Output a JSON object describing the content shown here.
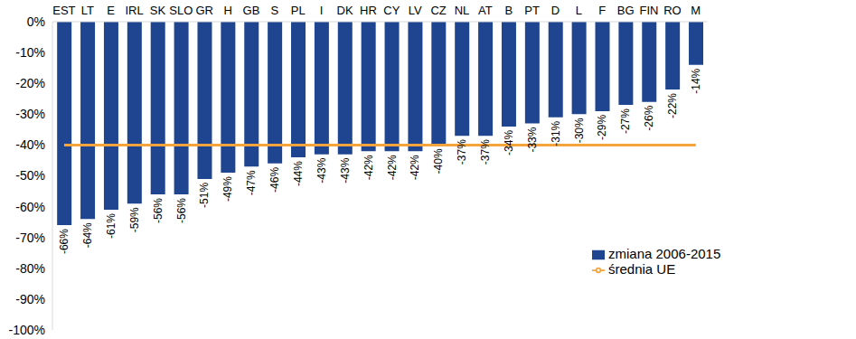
{
  "chart_data": {
    "type": "bar",
    "categories": [
      "EST",
      "LT",
      "E",
      "IRL",
      "SK",
      "SLO",
      "GR",
      "H",
      "GB",
      "S",
      "PL",
      "I",
      "DK",
      "HR",
      "CY",
      "LV",
      "CZ",
      "NL",
      "AT",
      "B",
      "PT",
      "D",
      "L",
      "F",
      "BG",
      "FIN",
      "RO",
      "M"
    ],
    "series": [
      {
        "name": "zmiana 2006-2015",
        "type": "bar",
        "color": "#1F4591",
        "data_labels": true,
        "values": [
          -66,
          -64,
          -61,
          -59,
          -56,
          -56,
          -51,
          -49,
          -47,
          -46,
          -44,
          -43,
          -43,
          -42,
          -42,
          -42,
          -40,
          -37,
          -37,
          -34,
          -33,
          -31,
          -30,
          -29,
          -27,
          -26,
          -22,
          -14
        ],
        "value_labels": [
          "-66%",
          "-64%",
          "-61%",
          "-59%",
          "-56%",
          "-56%",
          "-51%",
          "-49%",
          "-47%",
          "-46%",
          "-44%",
          "-43%",
          "-43%",
          "-42%",
          "-42%",
          "-42%",
          "-40%",
          "-37%",
          "-37%",
          "-34%",
          "-33%",
          "-31%",
          "-30%",
          "-29%",
          "-27%",
          "-26%",
          "-22%",
          "-14%"
        ]
      },
      {
        "name": "średnia UE",
        "type": "line",
        "color": "#F5A43C",
        "values": [
          -40,
          -40,
          -40,
          -40,
          -40,
          -40,
          -40,
          -40,
          -40,
          -40,
          -40,
          -40,
          -40,
          -40,
          -40,
          -40,
          -40,
          -40,
          -40,
          -40,
          -40,
          -40,
          -40,
          -40,
          -40,
          -40,
          -40,
          -40
        ]
      }
    ],
    "ylim": [
      -100,
      0
    ],
    "yticks": [
      {
        "value": 0,
        "label": "0%"
      },
      {
        "value": -10,
        "label": "-10%"
      },
      {
        "value": -20,
        "label": "-20%"
      },
      {
        "value": -30,
        "label": "-30%"
      },
      {
        "value": -40,
        "label": "-40%"
      },
      {
        "value": -50,
        "label": "-50%"
      },
      {
        "value": -60,
        "label": "-60%"
      },
      {
        "value": -70,
        "label": "-70%"
      },
      {
        "value": -80,
        "label": "-80%"
      },
      {
        "value": -90,
        "label": "-90%"
      },
      {
        "value": -100,
        "label": "-100%"
      }
    ],
    "grid": false,
    "legend": "bottom right"
  }
}
